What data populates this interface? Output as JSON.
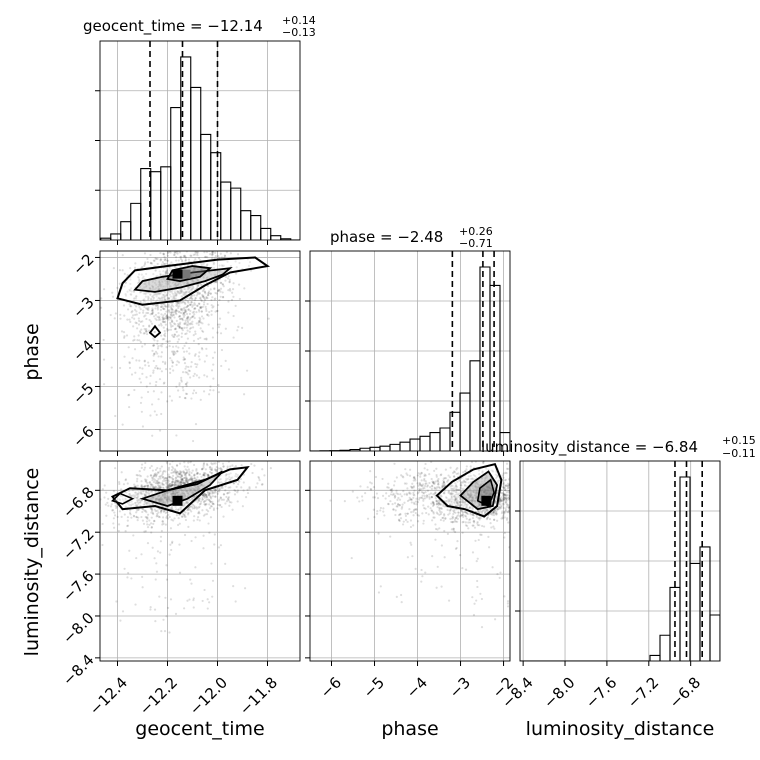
{
  "chart_data": {
    "type": "corner",
    "parameters": [
      "geocent_time",
      "phase",
      "luminosity_distance"
    ],
    "axes": {
      "geocent_time": {
        "label": "geocent_time",
        "lim": [
          -12.47,
          -11.67
        ],
        "ticks": [
          -12.4,
          -12.2,
          -12.0,
          -11.8
        ],
        "tick_labels": [
          "−12.4",
          "−12.2",
          "−12.0",
          "−11.8"
        ]
      },
      "phase": {
        "label": "phase",
        "lim": [
          -6.5,
          -1.85
        ],
        "ticks": [
          -6,
          -5,
          -4,
          -3,
          -2
        ],
        "tick_labels": [
          "−6",
          "−5",
          "−4",
          "−3",
          "−2"
        ]
      },
      "luminosity_distance": {
        "label": "luminosity_distance",
        "lim": [
          -8.43,
          -6.52
        ],
        "ticks": [
          -8.4,
          -8.0,
          -7.6,
          -7.2,
          -6.8
        ],
        "tick_labels": [
          "−8.4",
          "−8.0",
          "−7.6",
          "−7.2",
          "−6.8"
        ]
      }
    },
    "marginals": [
      {
        "param": "geocent_time",
        "title": {
          "prefix": "geocent_time = −12.14",
          "plus": "+0.14",
          "minus": "−0.13"
        },
        "quantiles": [
          -12.27,
          -12.14,
          -12.0
        ],
        "bins_x": [
          -12.467,
          -12.427,
          -12.387,
          -12.347,
          -12.307,
          -12.267,
          -12.227,
          -12.187,
          -12.147,
          -12.107,
          -12.067,
          -12.027,
          -11.987,
          -11.947,
          -11.907,
          -11.867,
          -11.827,
          -11.787,
          -11.747,
          -11.707,
          -11.667
        ],
        "counts": [
          0.3,
          1.0,
          3.0,
          6.0,
          11.7,
          11.2,
          12.0,
          21.7,
          30.0,
          25.0,
          17.3,
          14.3,
          9.5,
          8.5,
          4.8,
          4.0,
          1.9,
          0.7,
          0.2,
          0.0
        ]
      },
      {
        "param": "phase",
        "title": {
          "prefix": "phase = −2.48",
          "plus": "+0.26",
          "minus": "−0.71"
        },
        "quantiles": [
          -3.19,
          -2.48,
          -2.22
        ],
        "bins_x": [
          -6.5,
          -6.2675,
          -6.035,
          -5.8025,
          -5.57,
          -5.3375,
          -5.105,
          -4.8725,
          -4.64,
          -4.4075,
          -4.175,
          -3.9425,
          -3.71,
          -3.4775,
          -3.245,
          -3.0125,
          -2.78,
          -2.5475,
          -2.315,
          -2.0825,
          -1.85
        ],
        "counts": [
          0.0,
          0.1,
          0.2,
          0.4,
          0.8,
          1.5,
          2.0,
          2.6,
          3.6,
          4.8,
          6.5,
          8.0,
          10.0,
          12.5,
          21.0,
          31.5,
          49.0,
          100.0,
          90.0,
          10.0
        ]
      },
      {
        "param": "luminosity_distance",
        "title": {
          "prefix": "luminosity_distance = −6.84",
          "plus": "+0.15",
          "minus": "−0.11"
        },
        "quantiles": [
          -6.95,
          -6.84,
          -6.69
        ],
        "bins_x": [
          -8.43,
          -8.3345,
          -8.239,
          -8.1435,
          -8.048,
          -7.9525,
          -7.857,
          -7.7615,
          -7.666,
          -7.5705,
          -7.475,
          -7.3795,
          -7.284,
          -7.1885,
          -7.093,
          -6.9975,
          -6.902,
          -6.8065,
          -6.711,
          -6.6155,
          -6.52
        ],
        "counts": [
          0,
          0,
          0,
          0,
          0,
          0,
          0,
          0,
          0,
          0,
          0,
          0,
          0,
          3,
          14,
          40,
          100,
          53,
          62,
          25
        ]
      }
    ],
    "joint_2d": [
      {
        "x": "geocent_time",
        "y": "phase",
        "peak": [
          -12.15,
          -2.4
        ]
      },
      {
        "x": "geocent_time",
        "y": "luminosity_distance",
        "peak": [
          -12.16,
          -6.9
        ]
      },
      {
        "x": "phase",
        "y": "luminosity_distance",
        "peak": [
          -2.4,
          -6.9
        ]
      }
    ],
    "grid": true
  }
}
